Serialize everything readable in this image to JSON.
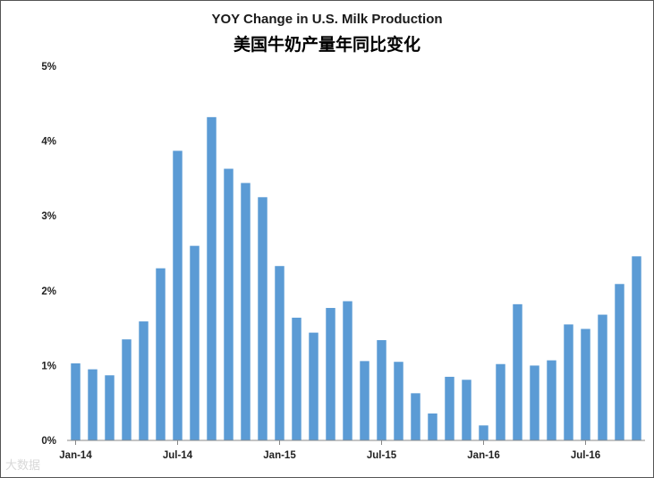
{
  "chart_data": {
    "type": "bar",
    "title": "YOY Change in U.S. Milk Production",
    "subtitle": "美国牛奶产量年同比变化",
    "series": [
      {
        "values": [
          1.03,
          0.95,
          0.87,
          1.35,
          1.59,
          2.3,
          3.87,
          2.6,
          4.32,
          3.63,
          3.44,
          3.25,
          2.33,
          1.64,
          1.44,
          1.77,
          1.86,
          1.06,
          1.34,
          1.05,
          0.63,
          0.36,
          0.85,
          0.81,
          0.2,
          1.02,
          1.82,
          1.0,
          1.07,
          1.55,
          1.49,
          1.68,
          2.09,
          2.46
        ],
        "color": "#5b9bd5"
      }
    ],
    "x_tick_labels": [
      {
        "index": 0,
        "label": "Jan-14"
      },
      {
        "index": 6,
        "label": "Jul-14"
      },
      {
        "index": 12,
        "label": "Jan-15"
      },
      {
        "index": 18,
        "label": "Jul-15"
      },
      {
        "index": 24,
        "label": "Jan-16"
      },
      {
        "index": 30,
        "label": "Jul-16"
      }
    ],
    "y_ticks": [
      "0%",
      "1%",
      "2%",
      "3%",
      "4%",
      "5%"
    ],
    "ylim": [
      0,
      5
    ],
    "grid": false,
    "legend": "none"
  },
  "watermark": "大数据"
}
